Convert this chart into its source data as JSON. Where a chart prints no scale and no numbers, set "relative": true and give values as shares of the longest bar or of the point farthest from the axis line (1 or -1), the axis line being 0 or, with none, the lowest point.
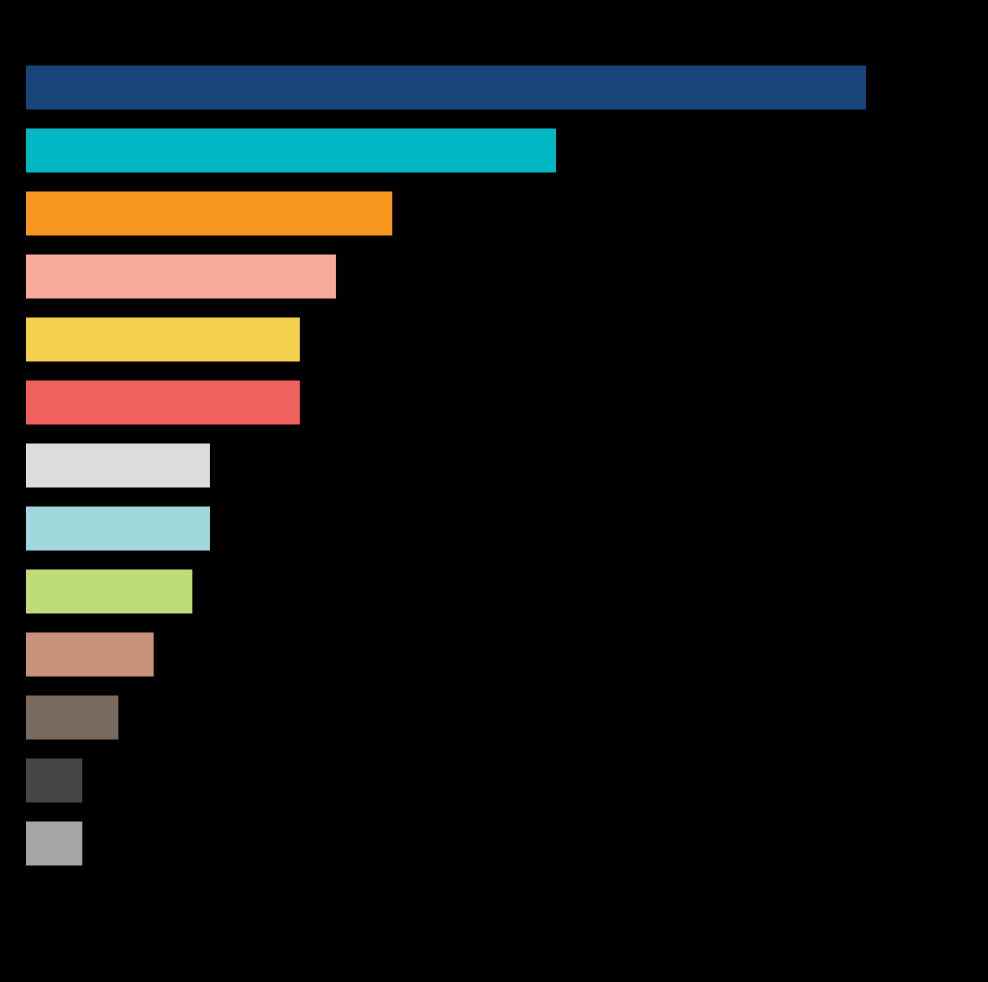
{
  "chart_data": {
    "type": "bar",
    "orientation": "horizontal",
    "relative": true,
    "categories": [
      null,
      null,
      null,
      null,
      null,
      null,
      null,
      null,
      null,
      null,
      null,
      null,
      null
    ],
    "values": [
      1,
      0.631,
      0.436,
      0.369,
      0.326,
      0.326,
      0.219,
      0.219,
      0.198,
      0.152,
      0.11,
      0.067,
      0.067
    ],
    "colors": [
      "#17457a",
      "#00b8c4",
      "#f7951f",
      "#f5aa9c",
      "#f5d04c",
      "#f0605e",
      "#dcdcdc",
      "#a0d8dc",
      "#bedc78",
      "#c8917a",
      "#7a6a5e",
      "#454545",
      "#a5a5a5"
    ]
  }
}
